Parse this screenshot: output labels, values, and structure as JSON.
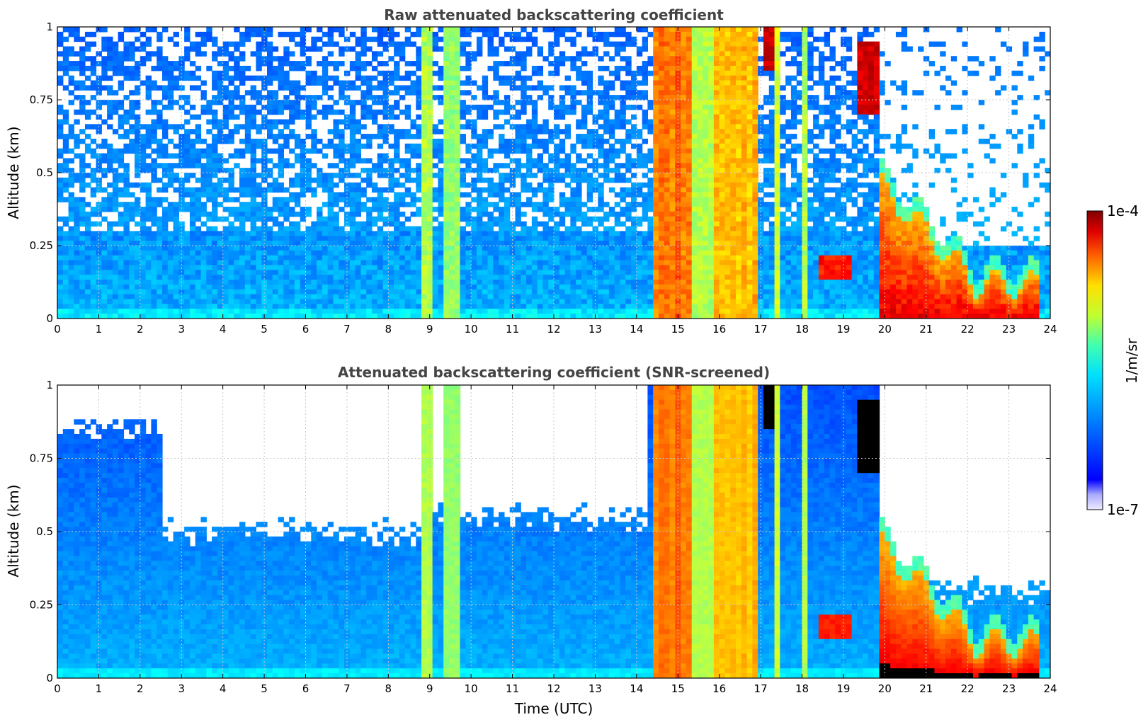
{
  "chart_data": [
    {
      "type": "heatmap",
      "title": "Raw attenuated backscattering coefficient",
      "xlabel": "",
      "ylabel": "Altitude (km)",
      "xlim": [
        0,
        24
      ],
      "ylim": [
        0,
        1
      ],
      "xticks": [
        "0",
        "1",
        "2",
        "3",
        "4",
        "5",
        "6",
        "7",
        "8",
        "9",
        "10",
        "11",
        "12",
        "13",
        "14",
        "15",
        "16",
        "17",
        "18",
        "19",
        "20",
        "21",
        "22",
        "23",
        "24"
      ],
      "yticks": [
        "0",
        "0.25",
        "0.5",
        "0.75",
        "1"
      ],
      "grid": true,
      "screened": false
    },
    {
      "type": "heatmap",
      "title": "Attenuated backscattering coefficient (SNR-screened)",
      "xlabel": "Time (UTC)",
      "ylabel": "Altitude (km)",
      "xlim": [
        0,
        24
      ],
      "ylim": [
        0,
        1
      ],
      "xticks": [
        "0",
        "1",
        "2",
        "3",
        "4",
        "5",
        "6",
        "7",
        "8",
        "9",
        "10",
        "11",
        "12",
        "13",
        "14",
        "15",
        "16",
        "17",
        "18",
        "19",
        "20",
        "21",
        "22",
        "23",
        "24"
      ],
      "yticks": [
        "0",
        "0.25",
        "0.5",
        "0.75",
        "1"
      ],
      "grid": true,
      "screened": true
    }
  ],
  "colorbar": {
    "label": "1/m/sr",
    "max_label": "1e-4",
    "min_label": "1e-7",
    "scale": "log",
    "colormap": "jet"
  }
}
